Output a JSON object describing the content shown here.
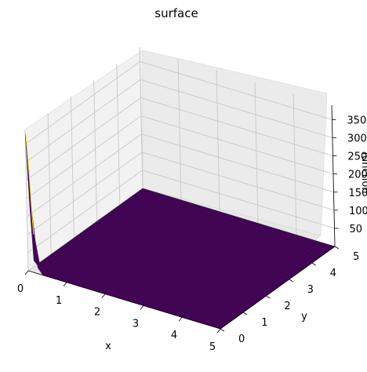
{
  "chart_data": {
    "type": "surface",
    "title": "surface",
    "xlabel": "x",
    "ylabel": "y",
    "zlabel": "function",
    "x_ticks": [
      0,
      1,
      2,
      3,
      4,
      5
    ],
    "y_ticks": [
      0,
      1,
      2,
      3,
      4,
      5
    ],
    "z_ticks": [
      50,
      100,
      150,
      200,
      250,
      300,
      350
    ],
    "xlim": [
      0,
      5
    ],
    "ylim": [
      0,
      5
    ],
    "zlim": [
      0,
      390
    ],
    "grid": true,
    "colormap": "viridis",
    "surface_color": "#440154",
    "peak": {
      "x": 0,
      "y": 0,
      "z": 380
    },
    "baseline_z": 0
  }
}
